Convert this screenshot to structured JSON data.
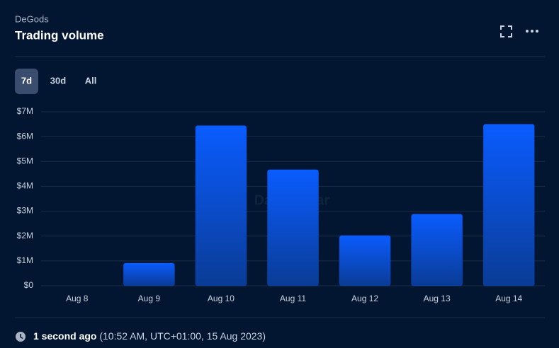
{
  "header": {
    "subtitle": "DeGods",
    "title": "Trading volume"
  },
  "tabs": [
    "7d",
    "30d",
    "All"
  ],
  "chart_data": {
    "type": "bar",
    "categories": [
      "Aug 8",
      "Aug 9",
      "Aug 10",
      "Aug 11",
      "Aug 12",
      "Aug 13",
      "Aug 14"
    ],
    "values": [
      0,
      910000,
      6440000,
      4670000,
      2020000,
      2880000,
      6500000
    ],
    "color": "#0a5cff",
    "ylim": [
      0,
      7000000
    ],
    "yticks": [
      {
        "value": 0,
        "label": "$0"
      },
      {
        "value": 1000000,
        "label": "$1M"
      },
      {
        "value": 2000000,
        "label": "$2M"
      },
      {
        "value": 3000000,
        "label": "$3M"
      },
      {
        "value": 4000000,
        "label": "$4M"
      },
      {
        "value": 5000000,
        "label": "$5M"
      },
      {
        "value": 6000000,
        "label": "$6M"
      },
      {
        "value": 7000000,
        "label": "$7M"
      }
    ],
    "grid": true,
    "watermark": "DappRadar"
  },
  "footer": {
    "relative": "1 second ago",
    "timestamp": "(10:52 AM, UTC+01:00, 15 Aug 2023)"
  }
}
